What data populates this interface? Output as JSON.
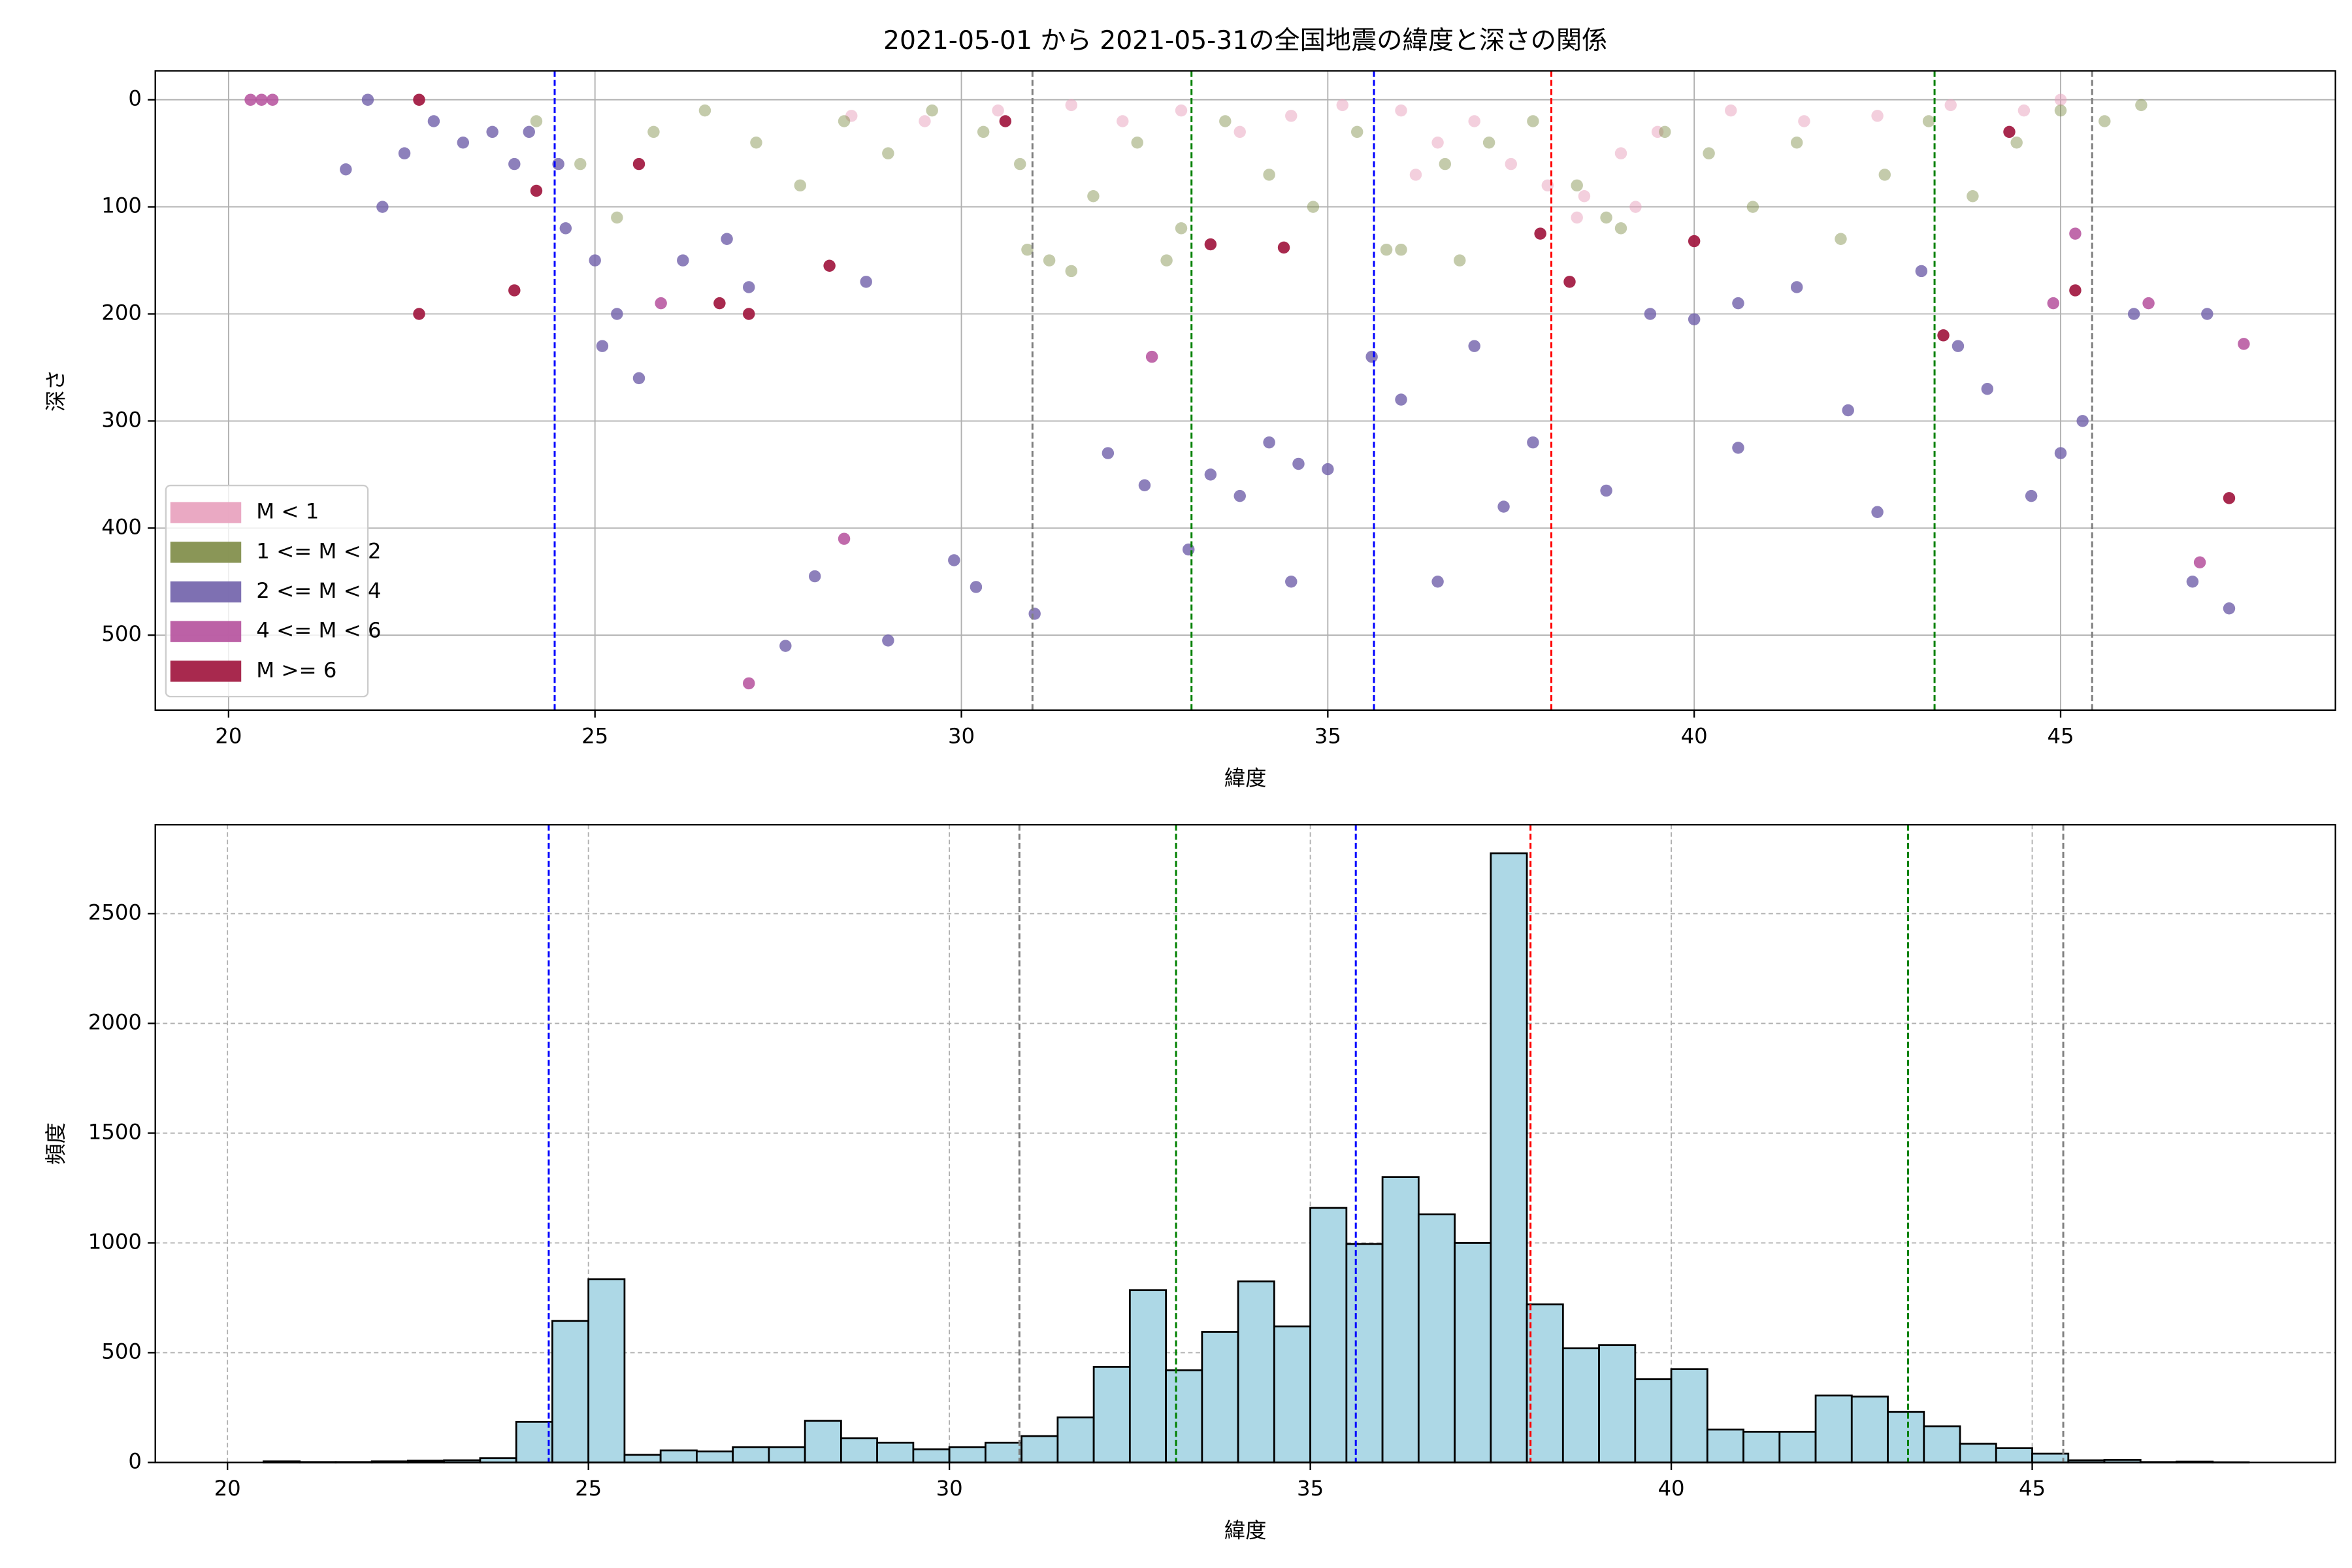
{
  "chart_data": [
    {
      "type": "scatter",
      "title": "2021-05-01 から 2021-05-31の全国地震の緯度と深さの関係",
      "x_label": "緯度",
      "y_label": "深さ",
      "xlim": [
        19,
        48.75
      ],
      "ylim": [
        570,
        -27
      ],
      "xticks": [
        20,
        25,
        30,
        35,
        40,
        45
      ],
      "yticks": [
        0,
        100,
        200,
        300,
        400,
        500
      ],
      "grid": true,
      "grid_style": "solid",
      "legend": "lower left",
      "vlines": [
        {
          "x": 24.45,
          "color": "#0000ff"
        },
        {
          "x": 30.97,
          "color": "#808080"
        },
        {
          "x": 33.14,
          "color": "#008000"
        },
        {
          "x": 35.63,
          "color": "#0000ff"
        },
        {
          "x": 38.05,
          "color": "#ff0000"
        },
        {
          "x": 43.28,
          "color": "#008000"
        },
        {
          "x": 45.43,
          "color": "#808080"
        }
      ],
      "series": [
        {
          "name": "M < 1",
          "color": "#e8a0bc",
          "alpha": 0.5,
          "x": [
            28.5,
            29.5,
            30.5,
            31.5,
            32.2,
            33,
            33.8,
            34.5,
            35.2,
            36,
            36.5,
            37,
            37.5,
            38,
            38.5,
            39,
            39.5,
            40.5,
            41.5,
            42.5,
            43.5,
            44.5,
            45,
            38.4,
            39.2,
            36.2
          ],
          "values": [
            15,
            20,
            10,
            5,
            20,
            10,
            30,
            15,
            5,
            10,
            40,
            20,
            60,
            80,
            90,
            50,
            30,
            10,
            20,
            15,
            5,
            10,
            0,
            110,
            100,
            70
          ]
        },
        {
          "name": "1 <= M < 2",
          "color": "#7d8b45",
          "alpha": 0.45,
          "x": [
            24.2,
            24.8,
            25.3,
            25.8,
            26.5,
            27.2,
            27.8,
            28.4,
            29,
            29.6,
            30.3,
            30.8,
            31.2,
            31.8,
            32.4,
            33,
            33.6,
            34.2,
            34.8,
            35.4,
            36,
            36.6,
            37.2,
            37.8,
            38.4,
            39,
            39.6,
            40.2,
            40.8,
            41.4,
            42,
            42.6,
            43.2,
            43.8,
            44.4,
            45,
            45.6,
            46.1,
            31.5,
            32.8,
            35.8,
            36.8,
            38.8,
            30.9
          ],
          "values": [
            20,
            60,
            110,
            30,
            10,
            40,
            80,
            20,
            50,
            10,
            30,
            60,
            150,
            90,
            40,
            120,
            20,
            70,
            100,
            30,
            140,
            60,
            40,
            20,
            80,
            120,
            30,
            50,
            100,
            40,
            130,
            70,
            20,
            90,
            40,
            10,
            20,
            5,
            160,
            150,
            140,
            150,
            110,
            140
          ]
        },
        {
          "name": "2 <= M < 4",
          "color": "#7060aa",
          "alpha": 0.8,
          "x": [
            21.6,
            21.9,
            22.1,
            22.4,
            22.8,
            23.2,
            23.6,
            23.9,
            24.1,
            24.6,
            25,
            25.3,
            25.6,
            26.2,
            26.8,
            27.1,
            27.6,
            28,
            28.7,
            29,
            29.9,
            30.2,
            31,
            32,
            32.5,
            33.1,
            33.4,
            33.8,
            34.2,
            34.5,
            35,
            35.6,
            36,
            36.5,
            37,
            37.4,
            37.8,
            38.8,
            39.4,
            40,
            40.6,
            41.4,
            42.1,
            42.5,
            43.1,
            43.6,
            44,
            44.6,
            45,
            45.3,
            46,
            46.8,
            47,
            47.3,
            24.5,
            25.1,
            34.6,
            40.6
          ],
          "values": [
            65,
            0,
            100,
            50,
            20,
            40,
            30,
            60,
            30,
            120,
            150,
            200,
            260,
            150,
            130,
            175,
            510,
            445,
            170,
            505,
            430,
            455,
            480,
            330,
            360,
            420,
            350,
            370,
            320,
            450,
            345,
            240,
            280,
            450,
            230,
            380,
            320,
            365,
            200,
            205,
            325,
            175,
            290,
            385,
            160,
            230,
            270,
            370,
            330,
            300,
            200,
            450,
            200,
            475,
            60,
            230,
            340,
            190
          ]
        },
        {
          "name": "4 <= M < 6",
          "color": "#b5509c",
          "alpha": 0.85,
          "x": [
            20.3,
            20.45,
            20.6,
            27.1,
            28.4,
            32.6,
            44.9,
            45.2,
            46.2,
            47.5,
            46.9,
            25.9
          ],
          "values": [
            0,
            0,
            0,
            545,
            410,
            240,
            190,
            125,
            190,
            228,
            432,
            190
          ]
        },
        {
          "name": "M >= 6",
          "color": "#a31d45",
          "alpha": 0.95,
          "x": [
            22.6,
            22.6,
            23.9,
            24.2,
            25.6,
            26.7,
            27.1,
            28.2,
            33.4,
            34.4,
            37.9,
            38.3,
            40,
            43.4,
            44.3,
            45.2,
            47.3,
            30.6
          ],
          "values": [
            200,
            0,
            178,
            85,
            60,
            190,
            200,
            155,
            135,
            138,
            125,
            170,
            132,
            220,
            30,
            178,
            372,
            20
          ]
        }
      ]
    },
    {
      "type": "histogram",
      "x_label": "緯度",
      "y_label": "頻度",
      "color": "#add8e6",
      "xlim": [
        19,
        49.2
      ],
      "ylim": [
        0,
        2905
      ],
      "xticks": [
        20,
        25,
        30,
        35,
        40,
        45
      ],
      "yticks": [
        0,
        500,
        1000,
        1500,
        2000,
        2500
      ],
      "grid": true,
      "grid_style": "dashed",
      "vlines": [
        {
          "x": 24.45,
          "color": "#0000ff"
        },
        {
          "x": 30.97,
          "color": "#808080"
        },
        {
          "x": 33.14,
          "color": "#008000"
        },
        {
          "x": 35.63,
          "color": "#0000ff"
        },
        {
          "x": 38.05,
          "color": "#ff0000"
        },
        {
          "x": 43.28,
          "color": "#008000"
        },
        {
          "x": 45.43,
          "color": "#808080"
        }
      ],
      "bins": [
        20,
        20.5,
        21,
        21.5,
        22,
        22.5,
        23,
        23.5,
        24,
        24.5,
        25,
        25.5,
        26,
        26.5,
        27,
        27.5,
        28,
        28.5,
        29,
        29.5,
        30,
        30.5,
        31,
        31.5,
        32,
        32.5,
        33,
        33.5,
        34,
        34.5,
        35,
        35.5,
        36,
        36.5,
        37,
        37.5,
        38,
        38.5,
        39,
        39.5,
        40,
        40.5,
        41,
        41.5,
        42,
        42.5,
        43,
        43.5,
        44,
        44.5,
        45,
        45.5,
        46,
        46.5,
        47,
        47.5,
        48
      ],
      "values": [
        0,
        5,
        2,
        2,
        5,
        8,
        10,
        20,
        185,
        645,
        835,
        35,
        55,
        50,
        70,
        70,
        190,
        110,
        90,
        60,
        70,
        90,
        120,
        205,
        435,
        785,
        420,
        595,
        825,
        620,
        1160,
        995,
        1300,
        1130,
        1000,
        2775,
        720,
        520,
        535,
        380,
        425,
        150,
        140,
        140,
        305,
        300,
        230,
        165,
        85,
        65,
        40,
        10,
        12,
        2,
        4,
        1
      ]
    }
  ]
}
